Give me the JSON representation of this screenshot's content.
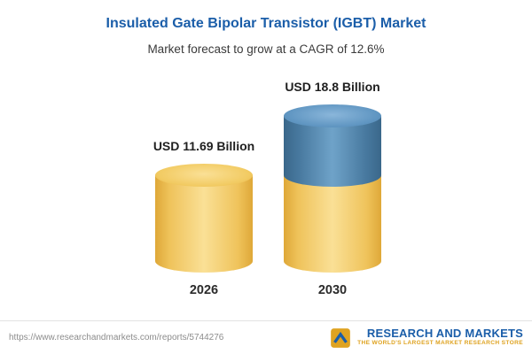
{
  "header": {
    "title": "Insulated Gate Bipolar Transistor (IGBT) Market",
    "subtitle": "Market forecast to grow at a CAGR of 12.6%"
  },
  "chart_data": {
    "type": "bar",
    "title": "Insulated Gate Bipolar Transistor (IGBT) Market",
    "subtitle": "Market forecast to grow at a CAGR of 12.6%",
    "unit": "USD Billion",
    "cagr_percent": 12.6,
    "categories": [
      "2026",
      "2030"
    ],
    "values": [
      11.69,
      18.8
    ],
    "value_labels": [
      "USD 11.69 Billion",
      "USD 18.8 Billion"
    ],
    "xlabel": "",
    "ylabel": "",
    "legend": "none",
    "grid": false,
    "colors": {
      "title_blue": "#1B5EA9",
      "bar_yellow": "#F2CB63",
      "bar_blue": "#4F83AC",
      "growth_segment_note": "2030 bar: yellow base equals 2026 value, blue top segment is growth to 18.8"
    }
  },
  "footer": {
    "url": "https://www.researchandmarkets.com/reports/5744276",
    "logo_name": "RESEARCH AND MARKETS",
    "logo_tagline": "THE WORLD'S LARGEST MARKET RESEARCH STORE",
    "logo_icon": "research-and-markets-logo-icon"
  }
}
